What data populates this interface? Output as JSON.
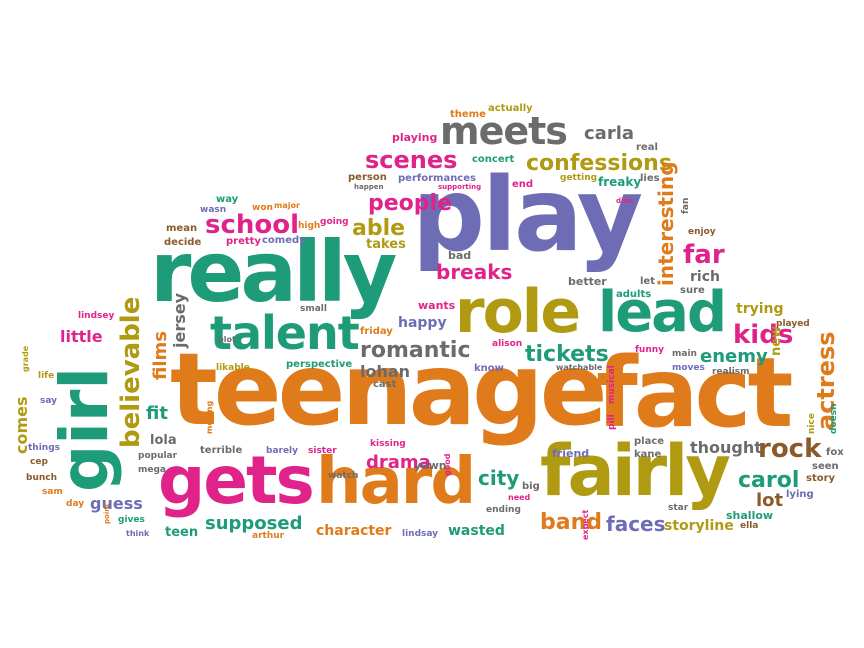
{
  "palette": {
    "pink": "#e0238a",
    "green": "#1e9b78",
    "orange": "#e07b1c",
    "purple": "#6e6cb5",
    "olive": "#b09a12",
    "gray": "#6b6b6b",
    "brown": "#8a5a2a",
    "red": "#e2502a"
  },
  "words": [
    {
      "text": "teenage"
    },
    {
      "text": "play"
    },
    {
      "text": "fact"
    },
    {
      "text": "really"
    },
    {
      "text": "girl"
    },
    {
      "text": "gets"
    },
    {
      "text": "hard"
    },
    {
      "text": "fairly"
    },
    {
      "text": "role"
    },
    {
      "text": "lead"
    },
    {
      "text": "talent"
    },
    {
      "text": "meets"
    },
    {
      "text": "school"
    },
    {
      "text": "scenes"
    },
    {
      "text": "confessions"
    },
    {
      "text": "romantic"
    },
    {
      "text": "believable"
    },
    {
      "text": "tickets"
    },
    {
      "text": "kids"
    },
    {
      "text": "rock"
    },
    {
      "text": "carol"
    },
    {
      "text": "interesting"
    },
    {
      "text": "actress"
    },
    {
      "text": "breaks"
    },
    {
      "text": "people"
    },
    {
      "text": "able"
    },
    {
      "text": "far"
    },
    {
      "text": "enemy"
    },
    {
      "text": "band"
    },
    {
      "text": "faces"
    },
    {
      "text": "city"
    },
    {
      "text": "drama"
    },
    {
      "text": "supposed"
    },
    {
      "text": "films"
    },
    {
      "text": "jersey"
    },
    {
      "text": "lohan"
    },
    {
      "text": "fit"
    },
    {
      "text": "comes"
    },
    {
      "text": "guess"
    },
    {
      "text": "lot"
    },
    {
      "text": "thought"
    },
    {
      "text": "carla"
    },
    {
      "text": "little"
    },
    {
      "text": "storyline"
    },
    {
      "text": "character"
    },
    {
      "text": "wasted"
    },
    {
      "text": "trying"
    },
    {
      "text": "happy"
    },
    {
      "text": "takes"
    },
    {
      "text": "new"
    },
    {
      "text": "teen"
    },
    {
      "text": "freaky"
    },
    {
      "text": "lola"
    },
    {
      "text": "rich"
    },
    {
      "text": "wants"
    },
    {
      "text": "better"
    },
    {
      "text": "bad"
    },
    {
      "text": "performances"
    },
    {
      "text": "playing"
    },
    {
      "text": "concert"
    },
    {
      "text": "comedy"
    },
    {
      "text": "pretty"
    },
    {
      "text": "mean"
    },
    {
      "text": "decide"
    },
    {
      "text": "person"
    },
    {
      "text": "end"
    },
    {
      "text": "lies"
    },
    {
      "text": "friday"
    },
    {
      "text": "perspective"
    },
    {
      "text": "kissing"
    },
    {
      "text": "yawn"
    },
    {
      "text": "friend"
    },
    {
      "text": "kane"
    },
    {
      "text": "place"
    },
    {
      "text": "shallow"
    },
    {
      "text": "story"
    },
    {
      "text": "lying"
    },
    {
      "text": "seen"
    },
    {
      "text": "fox"
    },
    {
      "text": "nice"
    },
    {
      "text": "doesn"
    },
    {
      "text": "cast"
    },
    {
      "text": "know"
    },
    {
      "text": "funny"
    },
    {
      "text": "main"
    },
    {
      "text": "moves"
    },
    {
      "text": "realism"
    },
    {
      "text": "played"
    },
    {
      "text": "adults"
    },
    {
      "text": "sure"
    },
    {
      "text": "let"
    },
    {
      "text": "theme"
    },
    {
      "text": "actually"
    },
    {
      "text": "real"
    },
    {
      "text": "way"
    },
    {
      "text": "wasn"
    },
    {
      "text": "won"
    },
    {
      "text": "major"
    },
    {
      "text": "going"
    },
    {
      "text": "high"
    },
    {
      "text": "small"
    },
    {
      "text": "lindsey"
    },
    {
      "text": "life"
    },
    {
      "text": "say"
    },
    {
      "text": "grade"
    },
    {
      "text": "things"
    },
    {
      "text": "cep"
    },
    {
      "text": "bunch"
    },
    {
      "text": "sam"
    },
    {
      "text": "day"
    },
    {
      "text": "gives"
    },
    {
      "text": "think"
    },
    {
      "text": "arthur"
    },
    {
      "text": "lindsay"
    },
    {
      "text": "ending"
    },
    {
      "text": "need"
    },
    {
      "text": "big"
    },
    {
      "text": "star"
    },
    {
      "text": "ella"
    },
    {
      "text": "terrible"
    },
    {
      "text": "popular"
    },
    {
      "text": "barely"
    },
    {
      "text": "sister"
    },
    {
      "text": "watch"
    },
    {
      "text": "mega"
    },
    {
      "text": "moving"
    },
    {
      "text": "plot"
    },
    {
      "text": "likable"
    },
    {
      "text": "alison"
    },
    {
      "text": "watchable"
    },
    {
      "text": "musical"
    },
    {
      "text": "pill"
    },
    {
      "text": "expect"
    },
    {
      "text": "good"
    },
    {
      "text": "getting"
    },
    {
      "text": "supporting"
    },
    {
      "text": "happen"
    },
    {
      "text": "enjoy"
    },
    {
      "text": "fan"
    },
    {
      "text": "didn"
    },
    {
      "text": "point"
    }
  ]
}
